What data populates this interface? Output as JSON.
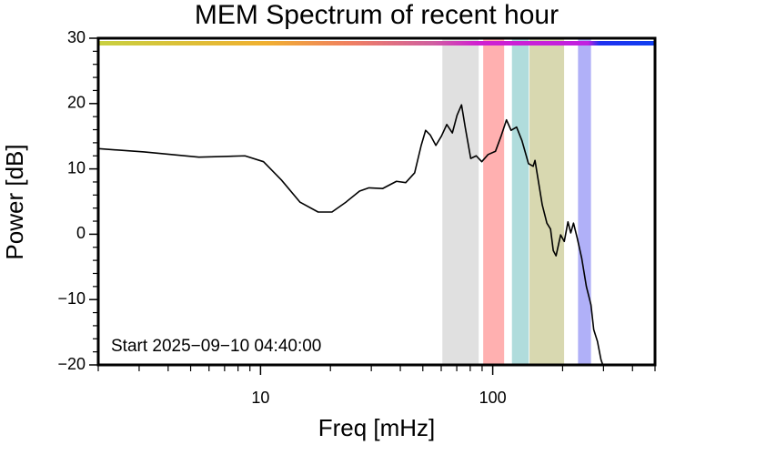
{
  "chart_data": {
    "type": "line",
    "title": "MEM Spectrum of recent hour",
    "x_label": "Freq [mHz]",
    "y_label": "Power [dB]",
    "annotation": "Start 2025−09−10 04:40:00",
    "log_x": true,
    "xlim": [
      2,
      500
    ],
    "ylim": [
      -20,
      30
    ],
    "xticks": [
      10,
      100
    ],
    "xminor": [
      2,
      3,
      4,
      5,
      6,
      7,
      8,
      9,
      20,
      30,
      40,
      50,
      60,
      70,
      80,
      90,
      200,
      300,
      400,
      500
    ],
    "yticks": [
      {
        "value": -20,
        "label": "−20"
      },
      {
        "value": -10,
        "label": "−10"
      },
      0,
      10,
      20,
      30
    ],
    "yminor": [
      -18,
      -16,
      -14,
      -12,
      -8,
      -6,
      -4,
      -2,
      2,
      4,
      6,
      8,
      12,
      14,
      16,
      18,
      22,
      24,
      26,
      28
    ],
    "bands": [
      {
        "xmin": 60.7,
        "xmax": 87,
        "color": "#e0e0e0"
      },
      {
        "xmin": 91,
        "xmax": 112,
        "color": "#ffb0b0"
      },
      {
        "xmin": 121,
        "xmax": 143,
        "color": "#b0dcdc"
      },
      {
        "xmin": 144,
        "xmax": 203,
        "color": "#d8d8b0"
      },
      {
        "xmin": 233,
        "xmax": 265,
        "color": "#b0b0f8"
      }
    ],
    "series": [
      {
        "color": "#000000",
        "x": [
          2,
          3.15,
          5.43,
          8.57,
          10.3,
          12.3,
          14.8,
          17.7,
          20.3,
          23.3,
          26.7,
          29.3,
          33.6,
          38.5,
          42.2,
          46.1,
          49.2,
          51.4,
          53.8,
          56.9,
          60.1,
          63.4,
          67.0,
          70.2,
          73.4,
          76.1,
          80.4,
          84.9,
          89.7,
          95.5,
          102.8,
          108.6,
          114.6,
          120.0,
          126.7,
          133.7,
          142.6,
          149.3,
          152.1,
          156.3,
          163.4,
          171.1,
          177.4,
          182.3,
          187.4,
          196.1,
          203.3,
          210.9,
          216.8,
          222.8,
          231.2,
          241.8,
          253.1,
          264.9,
          272.3,
          282.5,
          292.6,
          298.0
        ],
        "values": [
          13.1,
          12.6,
          11.8,
          12.0,
          11.1,
          8.3,
          4.9,
          3.4,
          3.4,
          4.9,
          6.6,
          7.1,
          7.0,
          8.1,
          7.9,
          9.4,
          13.6,
          15.9,
          15.2,
          13.6,
          15.0,
          16.8,
          15.5,
          18.2,
          19.8,
          16.4,
          11.6,
          12.0,
          11.1,
          12.2,
          12.7,
          15.0,
          17.5,
          15.9,
          16.4,
          14.3,
          10.8,
          10.4,
          11.3,
          8.7,
          4.5,
          1.7,
          0.8,
          -2.5,
          -3.3,
          -0.1,
          -1.1,
          1.9,
          0.2,
          1.7,
          -0.6,
          -3.7,
          -8.0,
          -10.8,
          -14.6,
          -16.4,
          -19.2,
          -20.0
        ]
      }
    ]
  }
}
